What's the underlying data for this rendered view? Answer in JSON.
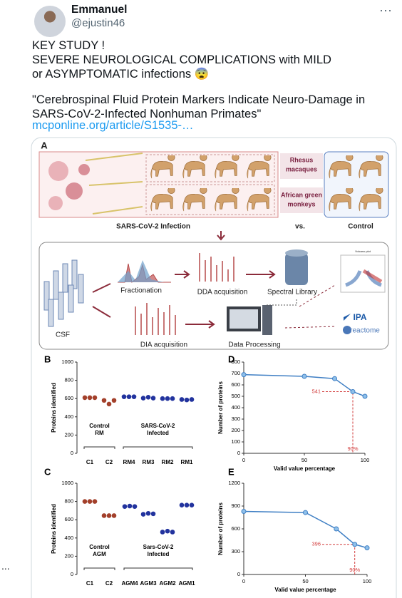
{
  "tweet": {
    "author": {
      "name": "Emmanuel",
      "handle": "@ejustin46"
    },
    "more": "···",
    "text": {
      "line_1": "KEY STUDY !",
      "line_2": "SEVERE NEUROLOGICAL COMPLICATIONS with MILD or ASYMPTOMATIC infections 😨",
      "quote": "\"Cerebrospinal Fluid Protein Markers Indicate Neuro-Damage in SARS-CoV-2-Infected Nonhuman Primates\"",
      "link": "mcponline.org/article/S1535-…"
    }
  },
  "left_edge_more": "...",
  "figure": {
    "panel_a": {
      "letter": "A",
      "rhesus": [
        "Rhesus",
        "macaques"
      ],
      "agm": [
        "African green",
        "monkeys"
      ],
      "infection": "SARS-CoV-2 Infection",
      "vs": "vs.",
      "control": "Control",
      "csf": "CSF",
      "fractionation": "Fractionation",
      "dda": "DDA acquisition",
      "library": "Spectral Library",
      "dia": "DIA acquisition",
      "processing": "Data Processing",
      "volcano": "Volcano plot",
      "ipa": "IPA",
      "reactome": "reactome"
    },
    "panel_b": {
      "letter": "B",
      "type": "dot",
      "ylabel": "Proteins identified",
      "ylim": [
        0,
        1000
      ],
      "yticks": [
        0,
        200,
        400,
        600,
        800,
        1000
      ],
      "categories": [
        "C1",
        "C2",
        "RM4",
        "RM3",
        "RM2",
        "RM1"
      ],
      "values": [
        [
          610,
          610,
          610
        ],
        [
          580,
          540,
          580
        ],
        [
          620,
          620,
          620
        ],
        [
          605,
          615,
          605
        ],
        [
          600,
          600,
          600
        ],
        [
          590,
          585,
          590
        ]
      ],
      "colors": [
        "#a3402b",
        "#a3402b",
        "#22339e",
        "#22339e",
        "#22339e",
        "#22339e"
      ],
      "group_labels": [
        [
          "Control",
          "RM"
        ],
        [
          "SARS-CoV-2",
          "Infected"
        ]
      ]
    },
    "panel_c": {
      "letter": "C",
      "type": "dot",
      "ylabel": "Proteins identified",
      "ylim": [
        0,
        1000
      ],
      "yticks": [
        0,
        200,
        400,
        600,
        800,
        1000
      ],
      "categories": [
        "C1",
        "C2",
        "AGM4",
        "AGM3",
        "AGM2",
        "AGM1"
      ],
      "values": [
        [
          800,
          800,
          800
        ],
        [
          645,
          645,
          645
        ],
        [
          745,
          750,
          745
        ],
        [
          660,
          670,
          665
        ],
        [
          465,
          475,
          465
        ],
        [
          760,
          760,
          760
        ]
      ],
      "colors": [
        "#a3402b",
        "#a3402b",
        "#22339e",
        "#22339e",
        "#22339e",
        "#22339e"
      ],
      "group_labels": [
        [
          "Control",
          "AGM"
        ],
        [
          "Sars-CoV-2",
          "Infected"
        ]
      ]
    },
    "panel_d": {
      "letter": "D",
      "type": "line",
      "xlabel": "Valid value percentage",
      "ylabel": "Number of proteins",
      "xlim": [
        0,
        100
      ],
      "xticks": [
        0,
        50,
        100
      ],
      "ylim": [
        0,
        800
      ],
      "yticks": [
        0,
        100,
        200,
        300,
        400,
        500,
        600,
        700,
        800
      ],
      "x": [
        0,
        50,
        75,
        90,
        100
      ],
      "y": [
        690,
        675,
        655,
        541,
        500
      ],
      "color": "#3f7fc4",
      "marker": {
        "x": 90,
        "y": 541,
        "label_y": "541",
        "label_x": "90%"
      }
    },
    "panel_e": {
      "letter": "E",
      "type": "line",
      "xlabel": "Valid value percentage",
      "ylabel": "Number of proteins",
      "xlim": [
        0,
        100
      ],
      "xticks": [
        0,
        50,
        100
      ],
      "ylim": [
        0,
        1200
      ],
      "yticks": [
        0,
        300,
        600,
        900,
        1200
      ],
      "x": [
        0,
        50,
        75,
        90,
        100
      ],
      "y": [
        830,
        815,
        600,
        396,
        350
      ],
      "color": "#3f7fc4",
      "marker": {
        "x": 90,
        "y": 396,
        "label_y": "396",
        "label_x": "90%"
      }
    }
  }
}
